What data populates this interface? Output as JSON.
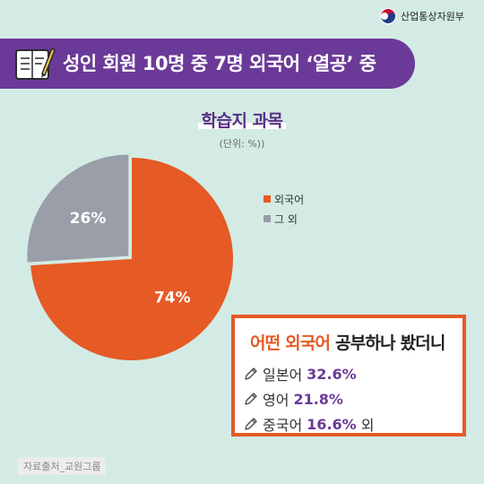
{
  "header": {
    "logo_text": "산업통상자원부",
    "banner_title": "성인 회원 10명 중 7명 외국어 ‘열공’ 중"
  },
  "chart_data": {
    "type": "pie",
    "title": "학습지 과목",
    "unit": "(단위: %))",
    "slices": [
      {
        "label": "외국어",
        "value": 74,
        "value_label": "74%",
        "color": "#e55a25",
        "exploded": false
      },
      {
        "label": "그 외",
        "value": 26,
        "value_label": "26%",
        "color": "#999ea8",
        "exploded": true
      }
    ],
    "legend_position": "right"
  },
  "callout": {
    "title_accent": "어떤 외국어",
    "title_rest": " 공부하나 봤더니",
    "items": [
      {
        "language": "일본어",
        "percent": "32.6%",
        "suffix": ""
      },
      {
        "language": "영어",
        "percent": "21.8%",
        "suffix": ""
      },
      {
        "language": "중국어",
        "percent": "16.6%",
        "suffix": "외"
      }
    ]
  },
  "footer": {
    "source": "자료출처_교원그룹"
  },
  "colors": {
    "banner": "#6b3a98",
    "background": "#d3ebe4",
    "accent_orange": "#e55a25",
    "gray": "#999ea8"
  }
}
